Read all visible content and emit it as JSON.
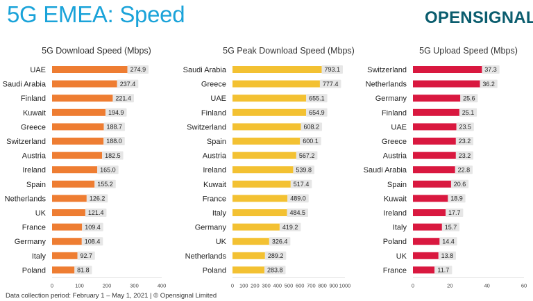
{
  "header": {
    "title": "5G EMEA: Speed",
    "logo_text": "OPENSIGNAL"
  },
  "footer": {
    "note": "Data collection period: February 1 – May 1, 2021  |  © Opensignal Limited"
  },
  "colors": {
    "title": "#1aa3d9",
    "logo": "#0b5d6e",
    "download": "#ee7d32",
    "peak": "#f3c132",
    "upload": "#d9183f",
    "value_box": "#e6e6e6"
  },
  "chart_data": [
    {
      "type": "bar",
      "orientation": "horizontal",
      "title": "5G Download Speed (Mbps)",
      "color": "#ee7d32",
      "categories": [
        "UAE",
        "Saudi Arabia",
        "Finland",
        "Kuwait",
        "Greece",
        "Switzerland",
        "Austria",
        "Ireland",
        "Spain",
        "Netherlands",
        "UK",
        "France",
        "Germany",
        "Italy",
        "Poland"
      ],
      "values": [
        274.9,
        237.4,
        221.4,
        194.9,
        188.7,
        188.0,
        182.5,
        165.0,
        155.2,
        126.2,
        121.4,
        109.4,
        108.4,
        92.7,
        81.8
      ],
      "value_labels": [
        "274.9",
        "237.4",
        "221.4",
        "194.9",
        "188.7",
        "188.0",
        "182.5",
        "165.0",
        "155.2",
        "126.2",
        "121.4",
        "109.4",
        "108.4",
        "92.7",
        "81.8"
      ],
      "xlim": [
        0,
        400
      ],
      "ticks": [
        0,
        100,
        200,
        300,
        400
      ]
    },
    {
      "type": "bar",
      "orientation": "horizontal",
      "title": "5G Peak Download Speed (Mbps)",
      "color": "#f3c132",
      "categories": [
        "Saudi Arabia",
        "Greece",
        "UAE",
        "Finland",
        "Switzerland",
        "Spain",
        "Austria",
        "Ireland",
        "Kuwait",
        "France",
        "Italy",
        "Germany",
        "UK",
        "Netherlands",
        "Poland"
      ],
      "values": [
        793.1,
        777.4,
        655.1,
        654.9,
        608.2,
        600.1,
        567.2,
        539.8,
        517.4,
        489.0,
        484.5,
        419.2,
        326.4,
        289.2,
        283.8
      ],
      "value_labels": [
        "793.1",
        "777.4",
        "655.1",
        "654.9",
        "608.2",
        "600.1",
        "567.2",
        "539.8",
        "517.4",
        "489.0",
        "484.5",
        "419.2",
        "326.4",
        "289.2",
        "283.8"
      ],
      "xlim": [
        0,
        1000
      ],
      "ticks": [
        0,
        100,
        200,
        300,
        400,
        500,
        600,
        700,
        800,
        900,
        1000
      ]
    },
    {
      "type": "bar",
      "orientation": "horizontal",
      "title": "5G Upload Speed (Mbps)",
      "color": "#d9183f",
      "categories": [
        "Switzerland",
        "Netherlands",
        "Germany",
        "Finland",
        "UAE",
        "Greece",
        "Austria",
        "Saudi Arabia",
        "Spain",
        "Kuwait",
        "Ireland",
        "Italy",
        "Poland",
        "UK",
        "France"
      ],
      "values": [
        37.3,
        36.2,
        25.6,
        25.1,
        23.5,
        23.2,
        23.2,
        22.8,
        20.6,
        18.9,
        17.7,
        15.7,
        14.4,
        13.8,
        11.7
      ],
      "value_labels": [
        "37.3",
        "36.2",
        "25.6",
        "25.1",
        "23.5",
        "23.2",
        "23.2",
        "22.8",
        "20.6",
        "18.9",
        "17.7",
        "15.7",
        "14.4",
        "13.8",
        "11.7"
      ],
      "xlim": [
        0,
        60
      ],
      "ticks": [
        0,
        20,
        40,
        60
      ]
    }
  ]
}
